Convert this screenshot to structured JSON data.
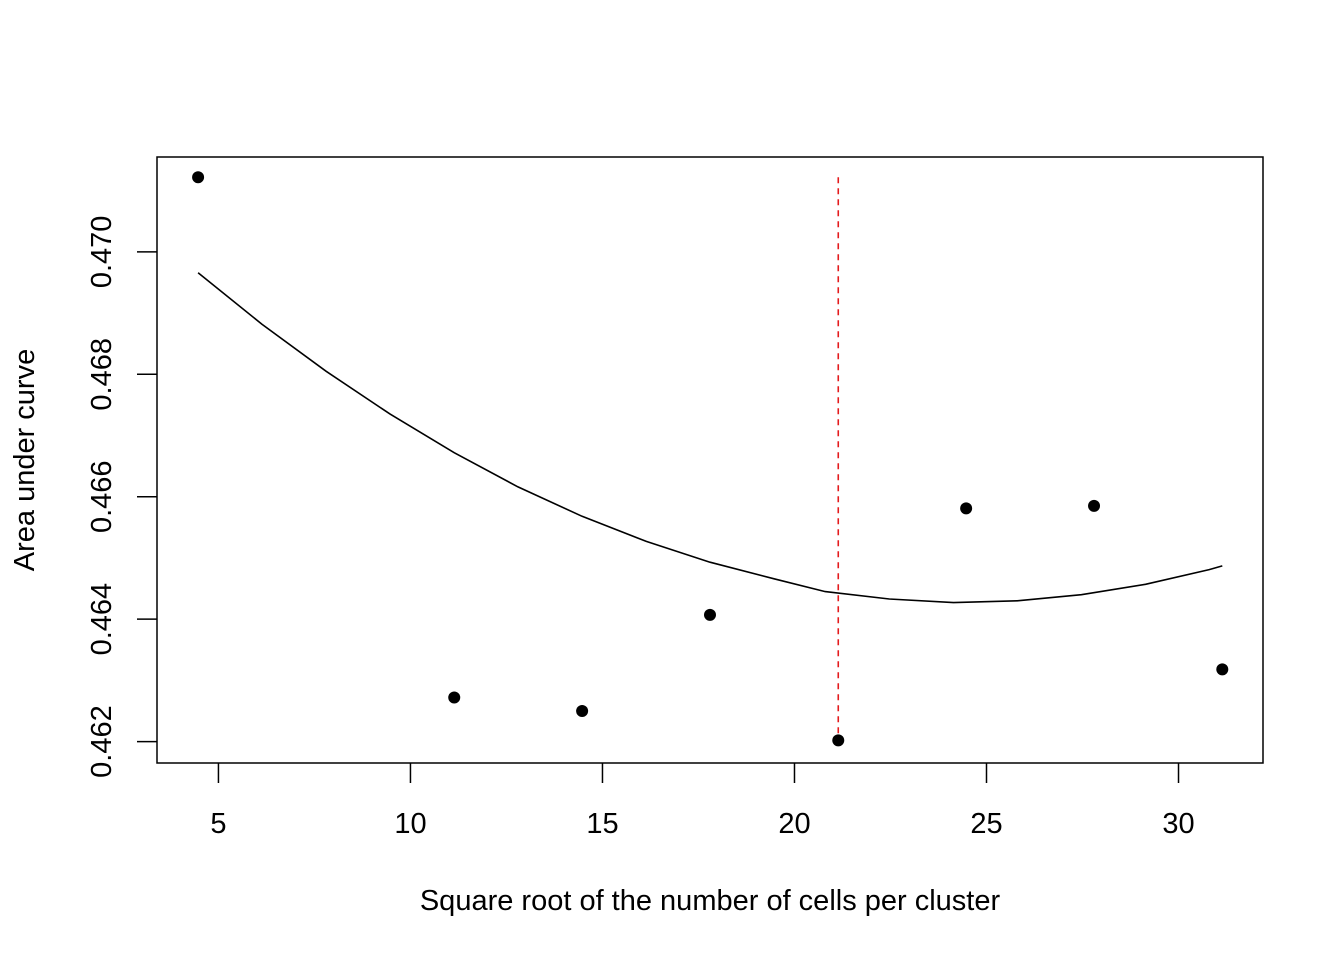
{
  "chart_data": {
    "type": "scatter",
    "title": "",
    "xlabel": "Square root of the number of cells per cluster",
    "ylabel": "Area under curve",
    "xlim": [
      3.4,
      32.2
    ],
    "ylim": [
      0.46165,
      0.47155
    ],
    "xticks": [
      5,
      10,
      15,
      20,
      25,
      30
    ],
    "yticks": [
      0.462,
      0.464,
      0.466,
      0.468,
      0.47
    ],
    "xtick_labels": [
      "5",
      "10",
      "15",
      "20",
      "25",
      "30"
    ],
    "ytick_labels": [
      "0.462",
      "0.464",
      "0.466",
      "0.468",
      "0.470"
    ],
    "grid": false,
    "legend": "none",
    "series": [
      {
        "type": "scatter",
        "x": [
          4.47,
          11.14,
          14.47,
          17.8,
          21.14,
          24.47,
          27.8,
          31.14
        ],
        "y": [
          0.47122,
          0.46272,
          0.4625,
          0.46407,
          0.46202,
          0.46581,
          0.46585,
          0.46318
        ],
        "color": "#000000"
      },
      {
        "type": "line",
        "x": [
          4.47,
          6.13,
          7.8,
          9.47,
          11.14,
          12.8,
          14.47,
          16.14,
          17.8,
          19.47,
          20.8,
          22.47,
          24.14,
          25.8,
          27.47,
          29.14,
          30.8,
          31.14
        ],
        "y": [
          0.46966,
          0.46882,
          0.46805,
          0.46735,
          0.46672,
          0.46616,
          0.46568,
          0.46527,
          0.46493,
          0.46466,
          0.46445,
          0.46433,
          0.46427,
          0.4643,
          0.4644,
          0.46457,
          0.46481,
          0.46487
        ],
        "color": "#000000"
      }
    ],
    "annotations": [
      {
        "type": "vline",
        "x": 21.14,
        "y_range": [
          0.46202,
          0.47122
        ],
        "color": "#e41a1c",
        "style": "dashed"
      }
    ]
  }
}
